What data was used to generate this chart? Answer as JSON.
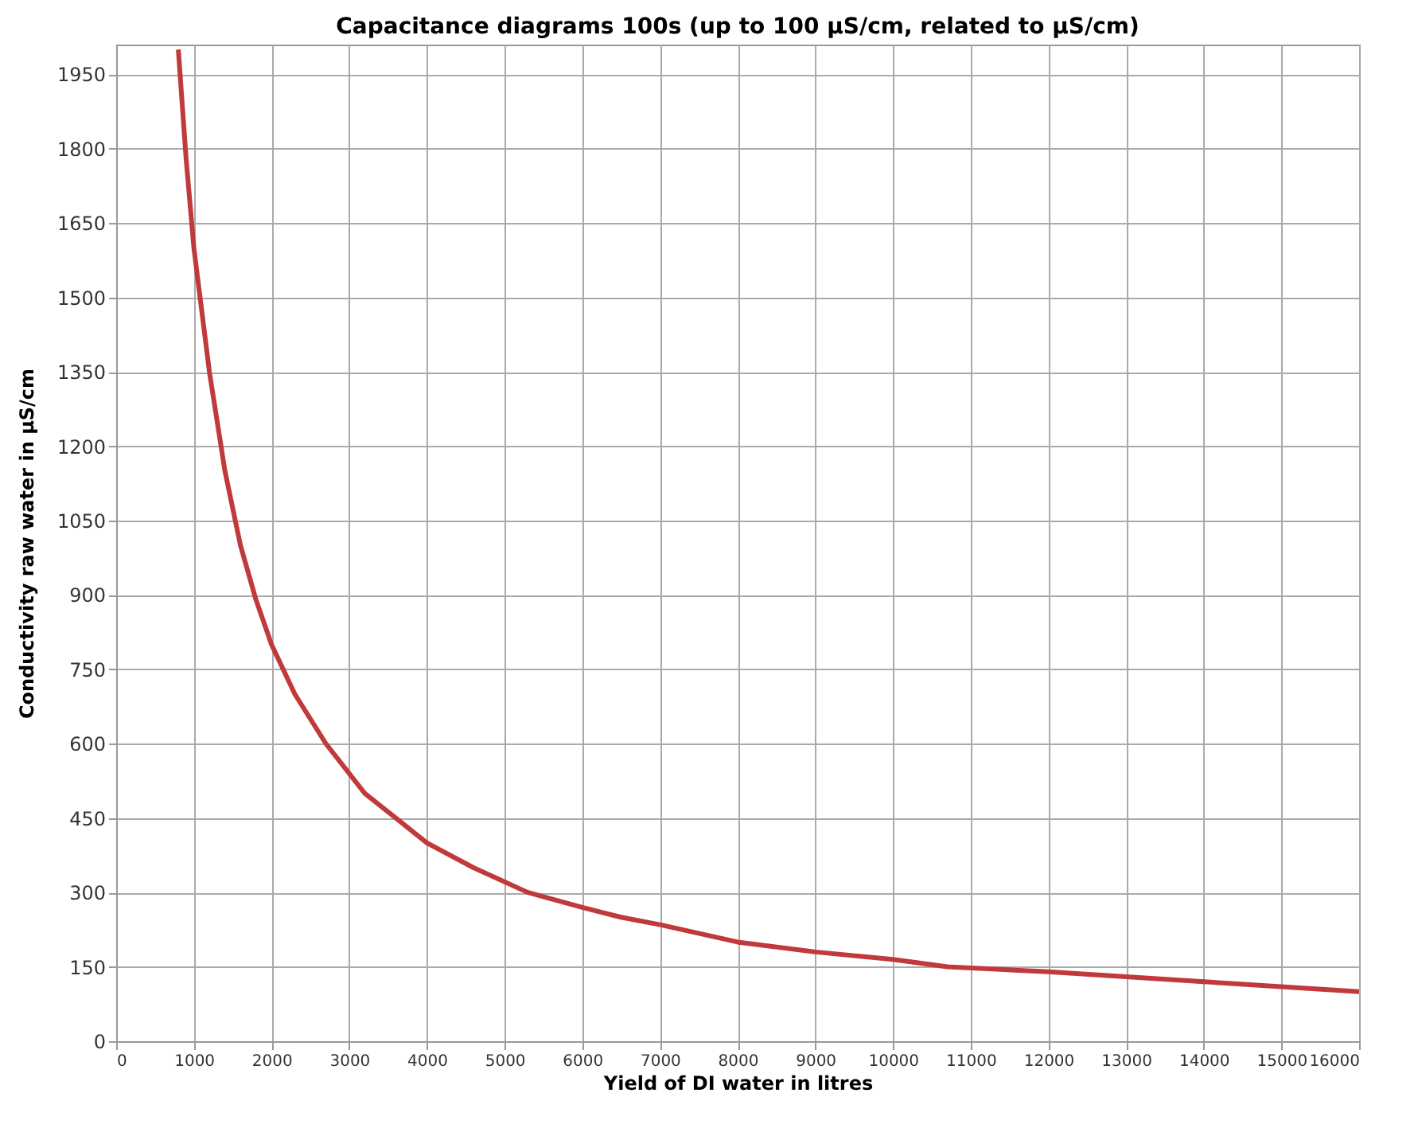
{
  "chart_data": {
    "type": "line",
    "title": "Capacitance diagrams 100s (up to 100 µS/cm, related to µS/cm)",
    "xlabel": "Yield of DI water in litres",
    "ylabel": "Conductivity raw water in µS/cm",
    "x": [
      800,
      900,
      1000,
      1200,
      1400,
      1600,
      1800,
      2000,
      2300,
      2700,
      3200,
      3600,
      4000,
      4600,
      5300,
      6000,
      6500,
      7000,
      8000,
      9000,
      10000,
      10700,
      12000,
      13000,
      14000,
      16000
    ],
    "series": [
      {
        "color": "#c0393b",
        "values": [
          2000,
          1780,
          1600,
          1350,
          1150,
          1000,
          890,
          800,
          700,
          600,
          500,
          450,
          400,
          350,
          300,
          270,
          250,
          235,
          200,
          180,
          165,
          150,
          140,
          130,
          120,
          100
        ]
      }
    ],
    "xlim": [
      0,
      16000
    ],
    "xticks": [
      0,
      1000,
      2000,
      3000,
      4000,
      5000,
      6000,
      7000,
      8000,
      9000,
      10000,
      11000,
      12000,
      13000,
      14000,
      15000,
      16000
    ],
    "ylim": [
      0,
      2010
    ],
    "yticks": [
      0,
      150,
      300,
      450,
      600,
      750,
      900,
      1050,
      1200,
      1350,
      1500,
      1650,
      1800,
      1950
    ],
    "grid": true,
    "marker": "none",
    "line_style": "solid"
  }
}
